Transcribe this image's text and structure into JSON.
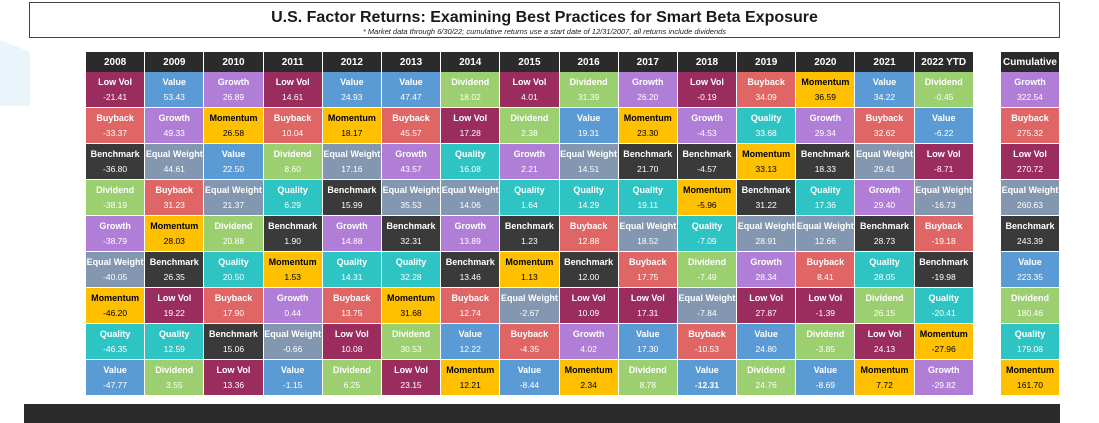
{
  "header": {
    "title": "U.S. Factor Returns: Examining Best Practices for Smart Beta Exposure",
    "subtitle": "* Market data through 6/30/22; cumulative returns use a start date of 12/31/2007, all returns include dividends"
  },
  "colors": {
    "Low Vol": "#9b2d5e",
    "Value": "#5b9bd5",
    "Growth": "#b07ed7",
    "Buyback": "#e06666",
    "Momentum": "#ffc000",
    "Benchmark": "#3a3a3a",
    "Equal Weight": "#8497b0",
    "Dividend": "#9ccf6f",
    "Quality": "#2ec4c4"
  },
  "chart_data": {
    "type": "table",
    "years": [
      "2008",
      "2009",
      "2010",
      "2011",
      "2012",
      "2013",
      "2014",
      "2015",
      "2016",
      "2017",
      "2018",
      "2019",
      "2020",
      "2021",
      "2022 YTD"
    ],
    "columns": [
      [
        [
          "Low Vol",
          "-21.41"
        ],
        [
          "Buyback",
          "-33.37"
        ],
        [
          "Benchmark",
          "-36.80"
        ],
        [
          "Dividend",
          "-38.19"
        ],
        [
          "Growth",
          "-38.79"
        ],
        [
          "Equal Weight",
          "-40.05"
        ],
        [
          "Momentum",
          "-46.20"
        ],
        [
          "Quality",
          "-46.35"
        ],
        [
          "Value",
          "-47.77"
        ]
      ],
      [
        [
          "Value",
          "53.43"
        ],
        [
          "Growth",
          "49.33"
        ],
        [
          "Equal Weight",
          "44.61"
        ],
        [
          "Buyback",
          "31.23"
        ],
        [
          "Momentum",
          "28.03"
        ],
        [
          "Benchmark",
          "26.35"
        ],
        [
          "Low Vol",
          "19.22"
        ],
        [
          "Quality",
          "12.59"
        ],
        [
          "Dividend",
          "3.55"
        ]
      ],
      [
        [
          "Growth",
          "26.89"
        ],
        [
          "Momentum",
          "26.58"
        ],
        [
          "Value",
          "22.50"
        ],
        [
          "Equal Weight",
          "21.37"
        ],
        [
          "Dividend",
          "20.88"
        ],
        [
          "Quality",
          "20.50"
        ],
        [
          "Buyback",
          "17.90"
        ],
        [
          "Benchmark",
          "15.06"
        ],
        [
          "Low Vol",
          "13.36"
        ]
      ],
      [
        [
          "Low Vol",
          "14.61"
        ],
        [
          "Buyback",
          "10.04"
        ],
        [
          "Dividend",
          "8.60"
        ],
        [
          "Quality",
          "6.29"
        ],
        [
          "Benchmark",
          "1.90"
        ],
        [
          "Momentum",
          "1.53"
        ],
        [
          "Growth",
          "0.44"
        ],
        [
          "Equal Weight",
          "-0.66"
        ],
        [
          "Value",
          "-1.15"
        ]
      ],
      [
        [
          "Value",
          "24.93"
        ],
        [
          "Momentum",
          "18.17"
        ],
        [
          "Equal Weight",
          "17.16"
        ],
        [
          "Benchmark",
          "15.99"
        ],
        [
          "Growth",
          "14.88"
        ],
        [
          "Quality",
          "14.31"
        ],
        [
          "Buyback",
          "13.75"
        ],
        [
          "Low Vol",
          "10.08"
        ],
        [
          "Dividend",
          "6.25"
        ]
      ],
      [
        [
          "Value",
          "47.47"
        ],
        [
          "Buyback",
          "45.57"
        ],
        [
          "Growth",
          "43.57"
        ],
        [
          "Equal Weight",
          "35.53"
        ],
        [
          "Benchmark",
          "32.31"
        ],
        [
          "Quality",
          "32.28"
        ],
        [
          "Momentum",
          "31.68"
        ],
        [
          "Dividend",
          "30.53"
        ],
        [
          "Low Vol",
          "23.15"
        ]
      ],
      [
        [
          "Dividend",
          "18.02"
        ],
        [
          "Low Vol",
          "17.28"
        ],
        [
          "Quality",
          "16.08"
        ],
        [
          "Equal Weight",
          "14.06"
        ],
        [
          "Growth",
          "13.89"
        ],
        [
          "Benchmark",
          "13.46"
        ],
        [
          "Buyback",
          "12.74"
        ],
        [
          "Value",
          "12.22"
        ],
        [
          "Momentum",
          "12.21"
        ]
      ],
      [
        [
          "Low Vol",
          "4.01"
        ],
        [
          "Dividend",
          "2.38"
        ],
        [
          "Growth",
          "2.21"
        ],
        [
          "Quality",
          "1.64"
        ],
        [
          "Benchmark",
          "1.23"
        ],
        [
          "Momentum",
          "1.13"
        ],
        [
          "Equal Weight",
          "-2.67"
        ],
        [
          "Buyback",
          "-4.35"
        ],
        [
          "Value",
          "-8.44"
        ]
      ],
      [
        [
          "Dividend",
          "31.39"
        ],
        [
          "Value",
          "19.31"
        ],
        [
          "Equal Weight",
          "14.51"
        ],
        [
          "Quality",
          "14.29"
        ],
        [
          "Buyback",
          "12.88"
        ],
        [
          "Benchmark",
          "12.00"
        ],
        [
          "Low Vol",
          "10.09"
        ],
        [
          "Growth",
          "4.02"
        ],
        [
          "Momentum",
          "2.34"
        ]
      ],
      [
        [
          "Growth",
          "26.20"
        ],
        [
          "Momentum",
          "23.30"
        ],
        [
          "Benchmark",
          "21.70"
        ],
        [
          "Quality",
          "19.11"
        ],
        [
          "Equal Weight",
          "18.52"
        ],
        [
          "Buyback",
          "17.75"
        ],
        [
          "Low Vol",
          "17.31"
        ],
        [
          "Value",
          "17.30"
        ],
        [
          "Dividend",
          "8.78"
        ]
      ],
      [
        [
          "Low Vol",
          "-0.19"
        ],
        [
          "Growth",
          "-4.53"
        ],
        [
          "Benchmark",
          "-4.57"
        ],
        [
          "Momentum",
          "-5.96"
        ],
        [
          "Quality",
          "-7.09"
        ],
        [
          "Dividend",
          "-7.49"
        ],
        [
          "Equal Weight",
          "-7.84"
        ],
        [
          "Buyback",
          "-10.53"
        ],
        [
          "Value",
          "-12.31"
        ]
      ],
      [
        [
          "Buyback",
          "34.09"
        ],
        [
          "Quality",
          "33.68"
        ],
        [
          "Momentum",
          "33.13"
        ],
        [
          "Benchmark",
          "31.22"
        ],
        [
          "Equal Weight",
          "28.91"
        ],
        [
          "Growth",
          "28.34"
        ],
        [
          "Low Vol",
          "27.87"
        ],
        [
          "Value",
          "24.80"
        ],
        [
          "Dividend",
          "24.76"
        ]
      ],
      [
        [
          "Momentum",
          "36.59"
        ],
        [
          "Growth",
          "29.34"
        ],
        [
          "Benchmark",
          "18.33"
        ],
        [
          "Quality",
          "17.36"
        ],
        [
          "Equal Weight",
          "12.66"
        ],
        [
          "Buyback",
          "8.41"
        ],
        [
          "Low Vol",
          "-1.39"
        ],
        [
          "Dividend",
          "-3.85"
        ],
        [
          "Value",
          "-8.69"
        ]
      ],
      [
        [
          "Value",
          "34.22"
        ],
        [
          "Buyback",
          "32.62"
        ],
        [
          "Equal Weight",
          "29.41"
        ],
        [
          "Growth",
          "29.40"
        ],
        [
          "Benchmark",
          "28.73"
        ],
        [
          "Quality",
          "28.05"
        ],
        [
          "Dividend",
          "26.15"
        ],
        [
          "Low Vol",
          "24.13"
        ],
        [
          "Momentum",
          "7.72"
        ]
      ],
      [
        [
          "Dividend",
          "-0.45"
        ],
        [
          "Value",
          "-6.22"
        ],
        [
          "Low Vol",
          "-8.71"
        ],
        [
          "Equal Weight",
          "-16.73"
        ],
        [
          "Buyback",
          "-19.18"
        ],
        [
          "Benchmark",
          "-19.98"
        ],
        [
          "Quality",
          "-20.41"
        ],
        [
          "Momentum",
          "-27.96"
        ],
        [
          "Growth",
          "-29.82"
        ]
      ]
    ],
    "cumulative": {
      "label": "Cumulative",
      "entries": [
        [
          "Growth",
          "322.54"
        ],
        [
          "Buyback",
          "275.32"
        ],
        [
          "Low Vol",
          "270.72"
        ],
        [
          "Equal Weight",
          "260.63"
        ],
        [
          "Benchmark",
          "243.39"
        ],
        [
          "Value",
          "223.35"
        ],
        [
          "Dividend",
          "180.46"
        ],
        [
          "Quality",
          "179.08"
        ],
        [
          "Momentum",
          "161.70"
        ]
      ]
    }
  }
}
